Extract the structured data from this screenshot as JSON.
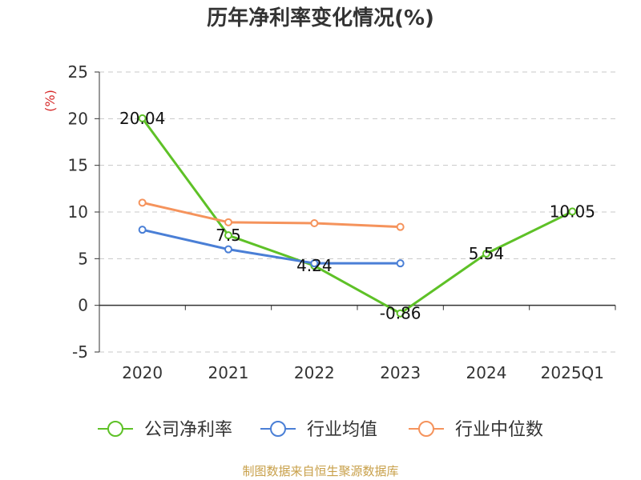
{
  "title": "历年净利率变化情况(%)",
  "source": "制图数据来自恒生聚源数据库",
  "chart_data": {
    "type": "line",
    "title": "历年净利率变化情况(%)",
    "ylabel": "(%)",
    "xlabel": "",
    "categories": [
      "2020",
      "2021",
      "2022",
      "2023",
      "2024",
      "2025Q1"
    ],
    "ylim": [
      -5,
      25
    ],
    "yticks": [
      -5,
      0,
      5,
      10,
      15,
      20,
      25
    ],
    "grid": true,
    "legend_position": "bottom",
    "series": [
      {
        "name": "公司净利率",
        "color": "#5ec127",
        "values": [
          20.04,
          7.5,
          4.24,
          -0.86,
          5.54,
          10.05
        ],
        "labels": [
          "20.04",
          "7.5",
          "4.24",
          "-0.86",
          "5.54",
          "10.05"
        ]
      },
      {
        "name": "行业均值",
        "color": "#4a7fd6",
        "values": [
          8.1,
          6.0,
          4.5,
          4.5,
          null,
          null
        ]
      },
      {
        "name": "行业中位数",
        "color": "#f5935c",
        "values": [
          11.0,
          8.9,
          8.8,
          8.4,
          null,
          null
        ]
      }
    ]
  }
}
